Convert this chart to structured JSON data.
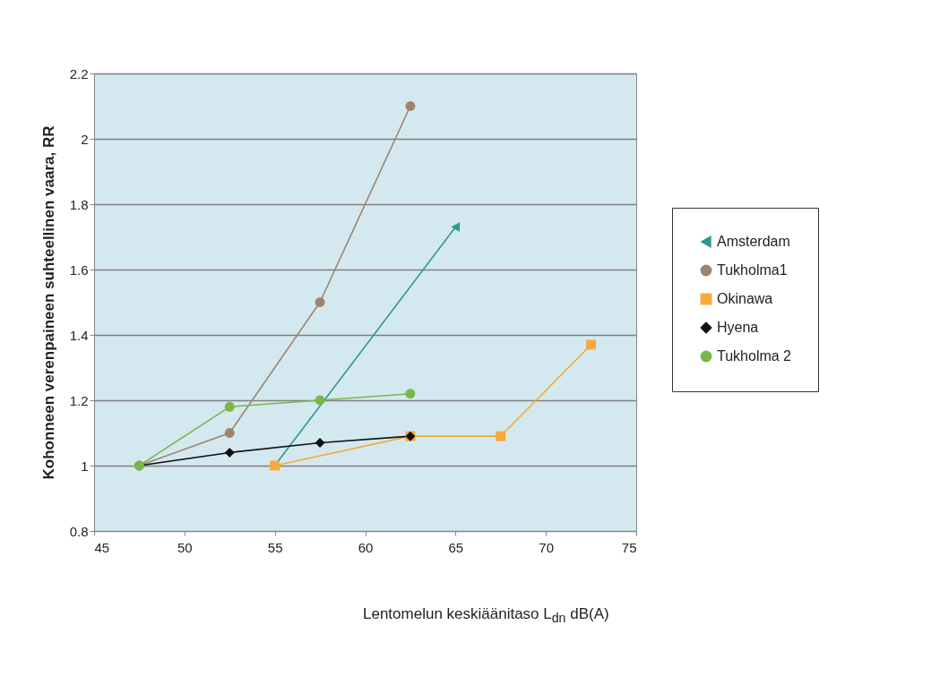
{
  "chart_data": {
    "type": "line",
    "xlabel": "Lentomelun keskiäänitaso L$_{dn}$ dB(A)",
    "ylabel": "Kohonneen verenpaineen suhteellinen vaara, RR",
    "xlim": [
      45,
      75
    ],
    "xticks": [
      45,
      50,
      55,
      60,
      65,
      70,
      75
    ],
    "ylim": [
      0.8,
      2.2
    ],
    "yticks": [
      0.8,
      1,
      1.2,
      1.4,
      1.6,
      1.8,
      2,
      2.2
    ],
    "grid": "y",
    "legend": "right",
    "series": [
      {
        "name": "Amsterdam",
        "color": "#2a9a8c",
        "marker": "triangle-left",
        "x": [
          55,
          65
        ],
        "values": [
          1.0,
          1.73
        ]
      },
      {
        "name": "Tukholma1",
        "color": "#9b8572",
        "marker": "circle",
        "x": [
          47.5,
          52.5,
          57.5,
          62.5
        ],
        "values": [
          1.0,
          1.1,
          1.5,
          2.1
        ]
      },
      {
        "name": "Okinawa",
        "color": "#f7a93a",
        "marker": "square",
        "x": [
          55,
          62.5,
          67.5,
          72.5
        ],
        "values": [
          1.0,
          1.09,
          1.09,
          1.37
        ]
      },
      {
        "name": "Hyena",
        "color": "#111111",
        "marker": "diamond",
        "x": [
          47.5,
          52.5,
          57.5,
          62.5
        ],
        "values": [
          1.0,
          1.04,
          1.07,
          1.09
        ]
      },
      {
        "name": "Tukholma 2",
        "color": "#7ab648",
        "marker": "circle",
        "x": [
          47.5,
          52.5,
          57.5,
          62.5
        ],
        "values": [
          1.0,
          1.18,
          1.2,
          1.22
        ]
      }
    ]
  }
}
